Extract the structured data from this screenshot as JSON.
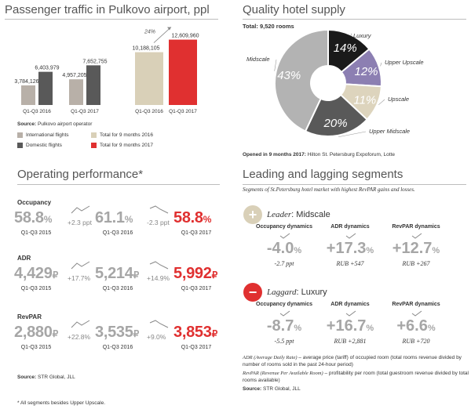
{
  "panels": {
    "traffic": {
      "title": "Passenger traffic in Pulkovo airport, ppl",
      "source_label": "Source:",
      "source_text": "Pulkovo airport operator",
      "growth_label": "24%",
      "legend": [
        {
          "label": "International flights",
          "color": "#b8b0a8"
        },
        {
          "label": "Domestic flights",
          "color": "#595959"
        },
        {
          "label": "Total for 9 months 2016",
          "color": "#d9d0b8"
        },
        {
          "label": "Total for 9 months 2017",
          "color": "#e03030"
        }
      ]
    },
    "hotel": {
      "title": "Quality hotel supply",
      "total": "Total: 9,520 rooms",
      "opened_label": "Opened in 9 months 2017:",
      "opened_text": "Hilton St. Petersburg Expoforum, Lotte"
    },
    "performance": {
      "title": "Operating performance*",
      "source_label": "Source:",
      "source_text": "STR Global, JLL",
      "footnote": "* All segments besides Upper Upscale.",
      "metrics": [
        {
          "label": "Occupancy",
          "v1": "58.8",
          "u1": "%",
          "p1": "Q1-Q3 2015",
          "d1": "+2.3 ppt",
          "v2": "61.1",
          "u2": "%",
          "p2": "Q1-Q3 2016",
          "d2": "-2.3 ppt",
          "v3": "58.8",
          "u3": "%",
          "p3": "Q1-Q3 2017"
        },
        {
          "label": "ADR",
          "v1": "4,429",
          "u1": "₽",
          "p1": "Q1-Q3 2015",
          "d1": "+17.7%",
          "v2": "5,214",
          "u2": "₽",
          "p2": "Q1-Q3 2016",
          "d2": "+14.9%",
          "v3": "5,992",
          "u3": "₽",
          "p3": "Q1-Q3 2017"
        },
        {
          "label": "RevPAR",
          "v1": "2,880",
          "u1": "₽",
          "p1": "Q1-Q3 2015",
          "d1": "+22.8%",
          "v2": "3,535",
          "u2": "₽",
          "p2": "Q1-Q3 2016",
          "d2": "+9.0%",
          "v3": "3,853",
          "u3": "₽",
          "p3": "Q1-Q3 2017"
        }
      ]
    },
    "segments": {
      "title": "Leading and lagging segments",
      "subtitle": "Segments of St.Petersburg hotel market with highest RevPAR gains and losses.",
      "leader": {
        "icon": "+",
        "role": "Leader",
        "segment": "Midscale",
        "cols": [
          {
            "label": "Occupancy dynamics",
            "value": "-4.0",
            "unit": "%",
            "sub": "-2.7 ppt"
          },
          {
            "label": "ADR dynamics",
            "value": "+17.3",
            "unit": "%",
            "sub": "RUB +547"
          },
          {
            "label": "RevPAR dynamics",
            "value": "+12.7",
            "unit": "%",
            "sub": "RUB +267"
          }
        ]
      },
      "laggard": {
        "icon": "−",
        "role": "Laggard",
        "segment": "Luxury",
        "cols": [
          {
            "label": "Occupancy dynamics",
            "value": "-8.7",
            "unit": "%",
            "sub": "-5.5 ppt"
          },
          {
            "label": "ADR dynamics",
            "value": "+16.7",
            "unit": "%",
            "sub": "RUB +2,881"
          },
          {
            "label": "RevPAR dynamics",
            "value": "+6.6",
            "unit": "%",
            "sub": "RUB +720"
          }
        ]
      },
      "note_adr_term": "ADR (Average Daily Rate)",
      "note_adr_text": " – average price (tariff) of occupied room (total rooms revenue divided by number of rooms sold in the past 24-hour period)",
      "note_revpar_term": "RevPAR (Revenue Per Available Room)",
      "note_revpar_text": " – profitability per room (total guestroom revenue divided by total rooms available)",
      "source_label": "Source:",
      "source_text": "STR Global, JLL"
    }
  },
  "chart_data": [
    {
      "type": "bar",
      "title": "Passenger traffic in Pulkovo airport, ppl",
      "categories": [
        "Q1-Q3 2016",
        "Q1-Q3 2017"
      ],
      "groups": [
        {
          "category": "Q1-Q3 2016",
          "series": [
            {
              "name": "International flights",
              "value": 3784126,
              "label": "3,784,126"
            },
            {
              "name": "Domestic flights",
              "value": 6403979,
              "label": "6,403,979"
            }
          ]
        },
        {
          "category": "Q1-Q3 2017",
          "series": [
            {
              "name": "International flights",
              "value": 4957205,
              "label": "4,957,205"
            },
            {
              "name": "Domestic flights",
              "value": 7652755,
              "label": "7,652,755"
            }
          ]
        }
      ],
      "totals": [
        {
          "name": "Total for 9 months 2016",
          "category": "Q1-Q3 2016",
          "value": 10188105,
          "label": "10,188,105"
        },
        {
          "name": "Total for 9 months 2017",
          "category": "Q1-Q3 2017",
          "value": 12609960,
          "label": "12,609,960"
        }
      ],
      "ylim": [
        0,
        13000000
      ]
    },
    {
      "type": "pie",
      "title": "Quality hotel supply",
      "slices": [
        {
          "name": "Luxury",
          "value": 14,
          "label": "14%",
          "color": "#1a1a1a"
        },
        {
          "name": "Upper Upscale",
          "value": 12,
          "label": "12%",
          "color": "#8c7fb2"
        },
        {
          "name": "Upscale",
          "value": 11,
          "label": "11%",
          "color": "#ddd4bd"
        },
        {
          "name": "Upper Midscale",
          "value": 20,
          "label": "20%",
          "color": "#595959"
        },
        {
          "name": "Midscale",
          "value": 43,
          "label": "43%",
          "color": "#b3b3b3"
        }
      ]
    }
  ]
}
